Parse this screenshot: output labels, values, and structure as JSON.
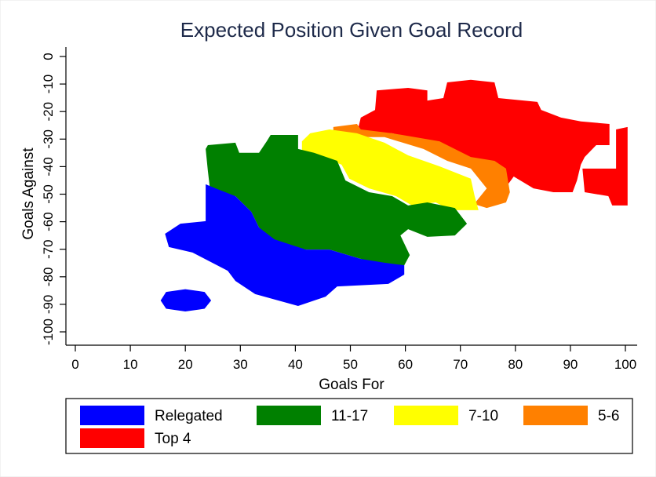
{
  "chart_data": {
    "type": "area",
    "title": "Expected Position Given Goal Record",
    "xlabel": "Goals For",
    "ylabel": "Goals Against",
    "xlim": [
      0,
      100
    ],
    "ylim": [
      -100,
      0
    ],
    "x_ticks": [
      "0",
      "10",
      "20",
      "30",
      "40",
      "50",
      "60",
      "70",
      "80",
      "90",
      "100"
    ],
    "y_ticks": [
      "0",
      "-10",
      "-20",
      "-30",
      "-40",
      "-50",
      "-60",
      "-70",
      "-80",
      "-90",
      "-100"
    ],
    "grid": false,
    "legend_position": "bottom",
    "series": [
      {
        "name": "Top 4",
        "color": "#ff0000",
        "regions": [
          [
            [
              54.8,
              -12.3
            ],
            [
              60.5,
              -11.4
            ],
            [
              64,
              -12.3
            ],
            [
              64,
              -16
            ],
            [
              66.9,
              -15.1
            ],
            [
              67.6,
              -9.4
            ],
            [
              71.9,
              -8.5
            ],
            [
              76.2,
              -9.4
            ],
            [
              76.9,
              -15.1
            ],
            [
              84,
              -16.5
            ],
            [
              84.7,
              -19.4
            ],
            [
              88.3,
              -22.2
            ],
            [
              91.9,
              -23.6
            ],
            [
              97.1,
              -24.5
            ],
            [
              97.1,
              -32.2
            ],
            [
              94.7,
              -32.2
            ],
            [
              92.6,
              -36.5
            ],
            [
              91.9,
              -39.3
            ],
            [
              91.2,
              -45
            ],
            [
              90.4,
              -49.3
            ],
            [
              86.9,
              -49.3
            ],
            [
              83.3,
              -47.9
            ],
            [
              79.7,
              -43.6
            ],
            [
              77.6,
              -49.3
            ],
            [
              75.5,
              -52.1
            ],
            [
              74.8,
              -46.4
            ],
            [
              71.9,
              -39.3
            ],
            [
              66.2,
              -32.2
            ],
            [
              57.6,
              -27.9
            ],
            [
              51.2,
              -27.9
            ],
            [
              51.9,
              -22.2
            ],
            [
              54.5,
              -19.4
            ]
          ],
          [
            [
              98.3,
              -26.5
            ],
            [
              100.4,
              -25.6
            ],
            [
              100.4,
              -54.1
            ],
            [
              97.6,
              -54.1
            ],
            [
              96.9,
              -50.7
            ],
            [
              92.6,
              -49.3
            ],
            [
              92.2,
              -40.7
            ],
            [
              98.3,
              -40.7
            ],
            [
              98.3,
              -35
            ]
          ]
        ]
      },
      {
        "name": "5-6",
        "color": "#ff8000",
        "regions": [
          [
            [
              46.9,
              -25.6
            ],
            [
              51.2,
              -24.5
            ],
            [
              51.9,
              -26.5
            ],
            [
              57.6,
              -27.9
            ],
            [
              66.2,
              -30.8
            ],
            [
              71.9,
              -36.5
            ],
            [
              76.2,
              -37.9
            ],
            [
              78.3,
              -40.7
            ],
            [
              79,
              -49.3
            ],
            [
              78.3,
              -53
            ],
            [
              74.8,
              -55
            ],
            [
              72.5,
              -53.6
            ],
            [
              74.8,
              -47.9
            ],
            [
              71.9,
              -40.7
            ],
            [
              67.6,
              -37.9
            ],
            [
              63.3,
              -33.6
            ],
            [
              56.2,
              -29.3
            ],
            [
              50.5,
              -29.3
            ],
            [
              46.9,
              -28.5
            ]
          ]
        ]
      },
      {
        "name": "7-10",
        "color": "#ffff00",
        "regions": [
          [
            [
              41.2,
              -30.8
            ],
            [
              42.7,
              -27.9
            ],
            [
              46.2,
              -26.5
            ],
            [
              51.2,
              -27.9
            ],
            [
              56.2,
              -31.3
            ],
            [
              60.5,
              -35.9
            ],
            [
              66.2,
              -39.9
            ],
            [
              71.9,
              -44.4
            ],
            [
              72.6,
              -50.7
            ],
            [
              73.3,
              -55.8
            ],
            [
              68.3,
              -55.8
            ],
            [
              65.5,
              -53
            ],
            [
              61.2,
              -54.1
            ],
            [
              58.3,
              -50.7
            ],
            [
              53.4,
              -47.9
            ],
            [
              49.8,
              -44.4
            ],
            [
              48.4,
              -39.3
            ],
            [
              44.8,
              -36.5
            ],
            [
              41.2,
              -35.9
            ]
          ]
        ]
      },
      {
        "name": "11-17",
        "color": "#008000",
        "regions": [
          [
            [
              23.7,
              -33.6
            ],
            [
              24.1,
              -32.2
            ],
            [
              29.1,
              -31.3
            ],
            [
              29.8,
              -35
            ],
            [
              33.4,
              -35
            ],
            [
              34.8,
              -30.8
            ],
            [
              35.5,
              -28.5
            ],
            [
              40.5,
              -28.5
            ],
            [
              40.5,
              -33.6
            ],
            [
              43.4,
              -35
            ],
            [
              47.6,
              -37.9
            ],
            [
              49.1,
              -45
            ],
            [
              53.4,
              -49.3
            ],
            [
              57.6,
              -50.7
            ],
            [
              60.5,
              -54.1
            ],
            [
              64,
              -53
            ],
            [
              69,
              -55
            ],
            [
              71.2,
              -60.7
            ],
            [
              69,
              -65
            ],
            [
              64,
              -65.5
            ],
            [
              60.5,
              -62.7
            ],
            [
              59.1,
              -65
            ],
            [
              60.8,
              -72.1
            ],
            [
              59.8,
              -75.8
            ],
            [
              55.5,
              -76.4
            ],
            [
              51.9,
              -73.5
            ],
            [
              46.2,
              -70.1
            ],
            [
              41.9,
              -70.1
            ],
            [
              36.2,
              -67.8
            ],
            [
              33.4,
              -62.1
            ],
            [
              32,
              -56.4
            ],
            [
              29.1,
              -50.7
            ],
            [
              24.5,
              -48.4
            ],
            [
              24.1,
              -41.5
            ]
          ]
        ]
      },
      {
        "name": "Relegated",
        "color": "#0000ff",
        "regions": [
          [
            [
              23.7,
              -46.4
            ],
            [
              25.5,
              -47.9
            ],
            [
              29.1,
              -50.7
            ],
            [
              32,
              -56.4
            ],
            [
              33.4,
              -62.1
            ],
            [
              36.2,
              -66.4
            ],
            [
              41.9,
              -70.1
            ],
            [
              46.2,
              -70.1
            ],
            [
              51.9,
              -73.5
            ],
            [
              56.2,
              -74.9
            ],
            [
              59.8,
              -75.8
            ],
            [
              59.8,
              -79.2
            ],
            [
              56.9,
              -82.6
            ],
            [
              47.6,
              -83.5
            ],
            [
              45.5,
              -87.2
            ],
            [
              40.5,
              -90.6
            ],
            [
              32.7,
              -86.3
            ],
            [
              29.1,
              -81.5
            ],
            [
              27.7,
              -77.8
            ],
            [
              21.3,
              -71.2
            ],
            [
              17,
              -69.2
            ],
            [
              16.3,
              -64.4
            ],
            [
              19.1,
              -60.7
            ],
            [
              23.7,
              -59.8
            ]
          ],
          [
            [
              15.5,
              -88.6
            ],
            [
              16.5,
              -85.5
            ],
            [
              20,
              -84.5
            ],
            [
              23.5,
              -85.5
            ],
            [
              24.7,
              -88.6
            ],
            [
              23.5,
              -91.6
            ],
            [
              20,
              -92.6
            ],
            [
              16.5,
              -91.6
            ]
          ]
        ]
      }
    ],
    "legend": [
      "Relegated",
      "11-17",
      "7-10",
      "5-6",
      "Top 4"
    ]
  }
}
